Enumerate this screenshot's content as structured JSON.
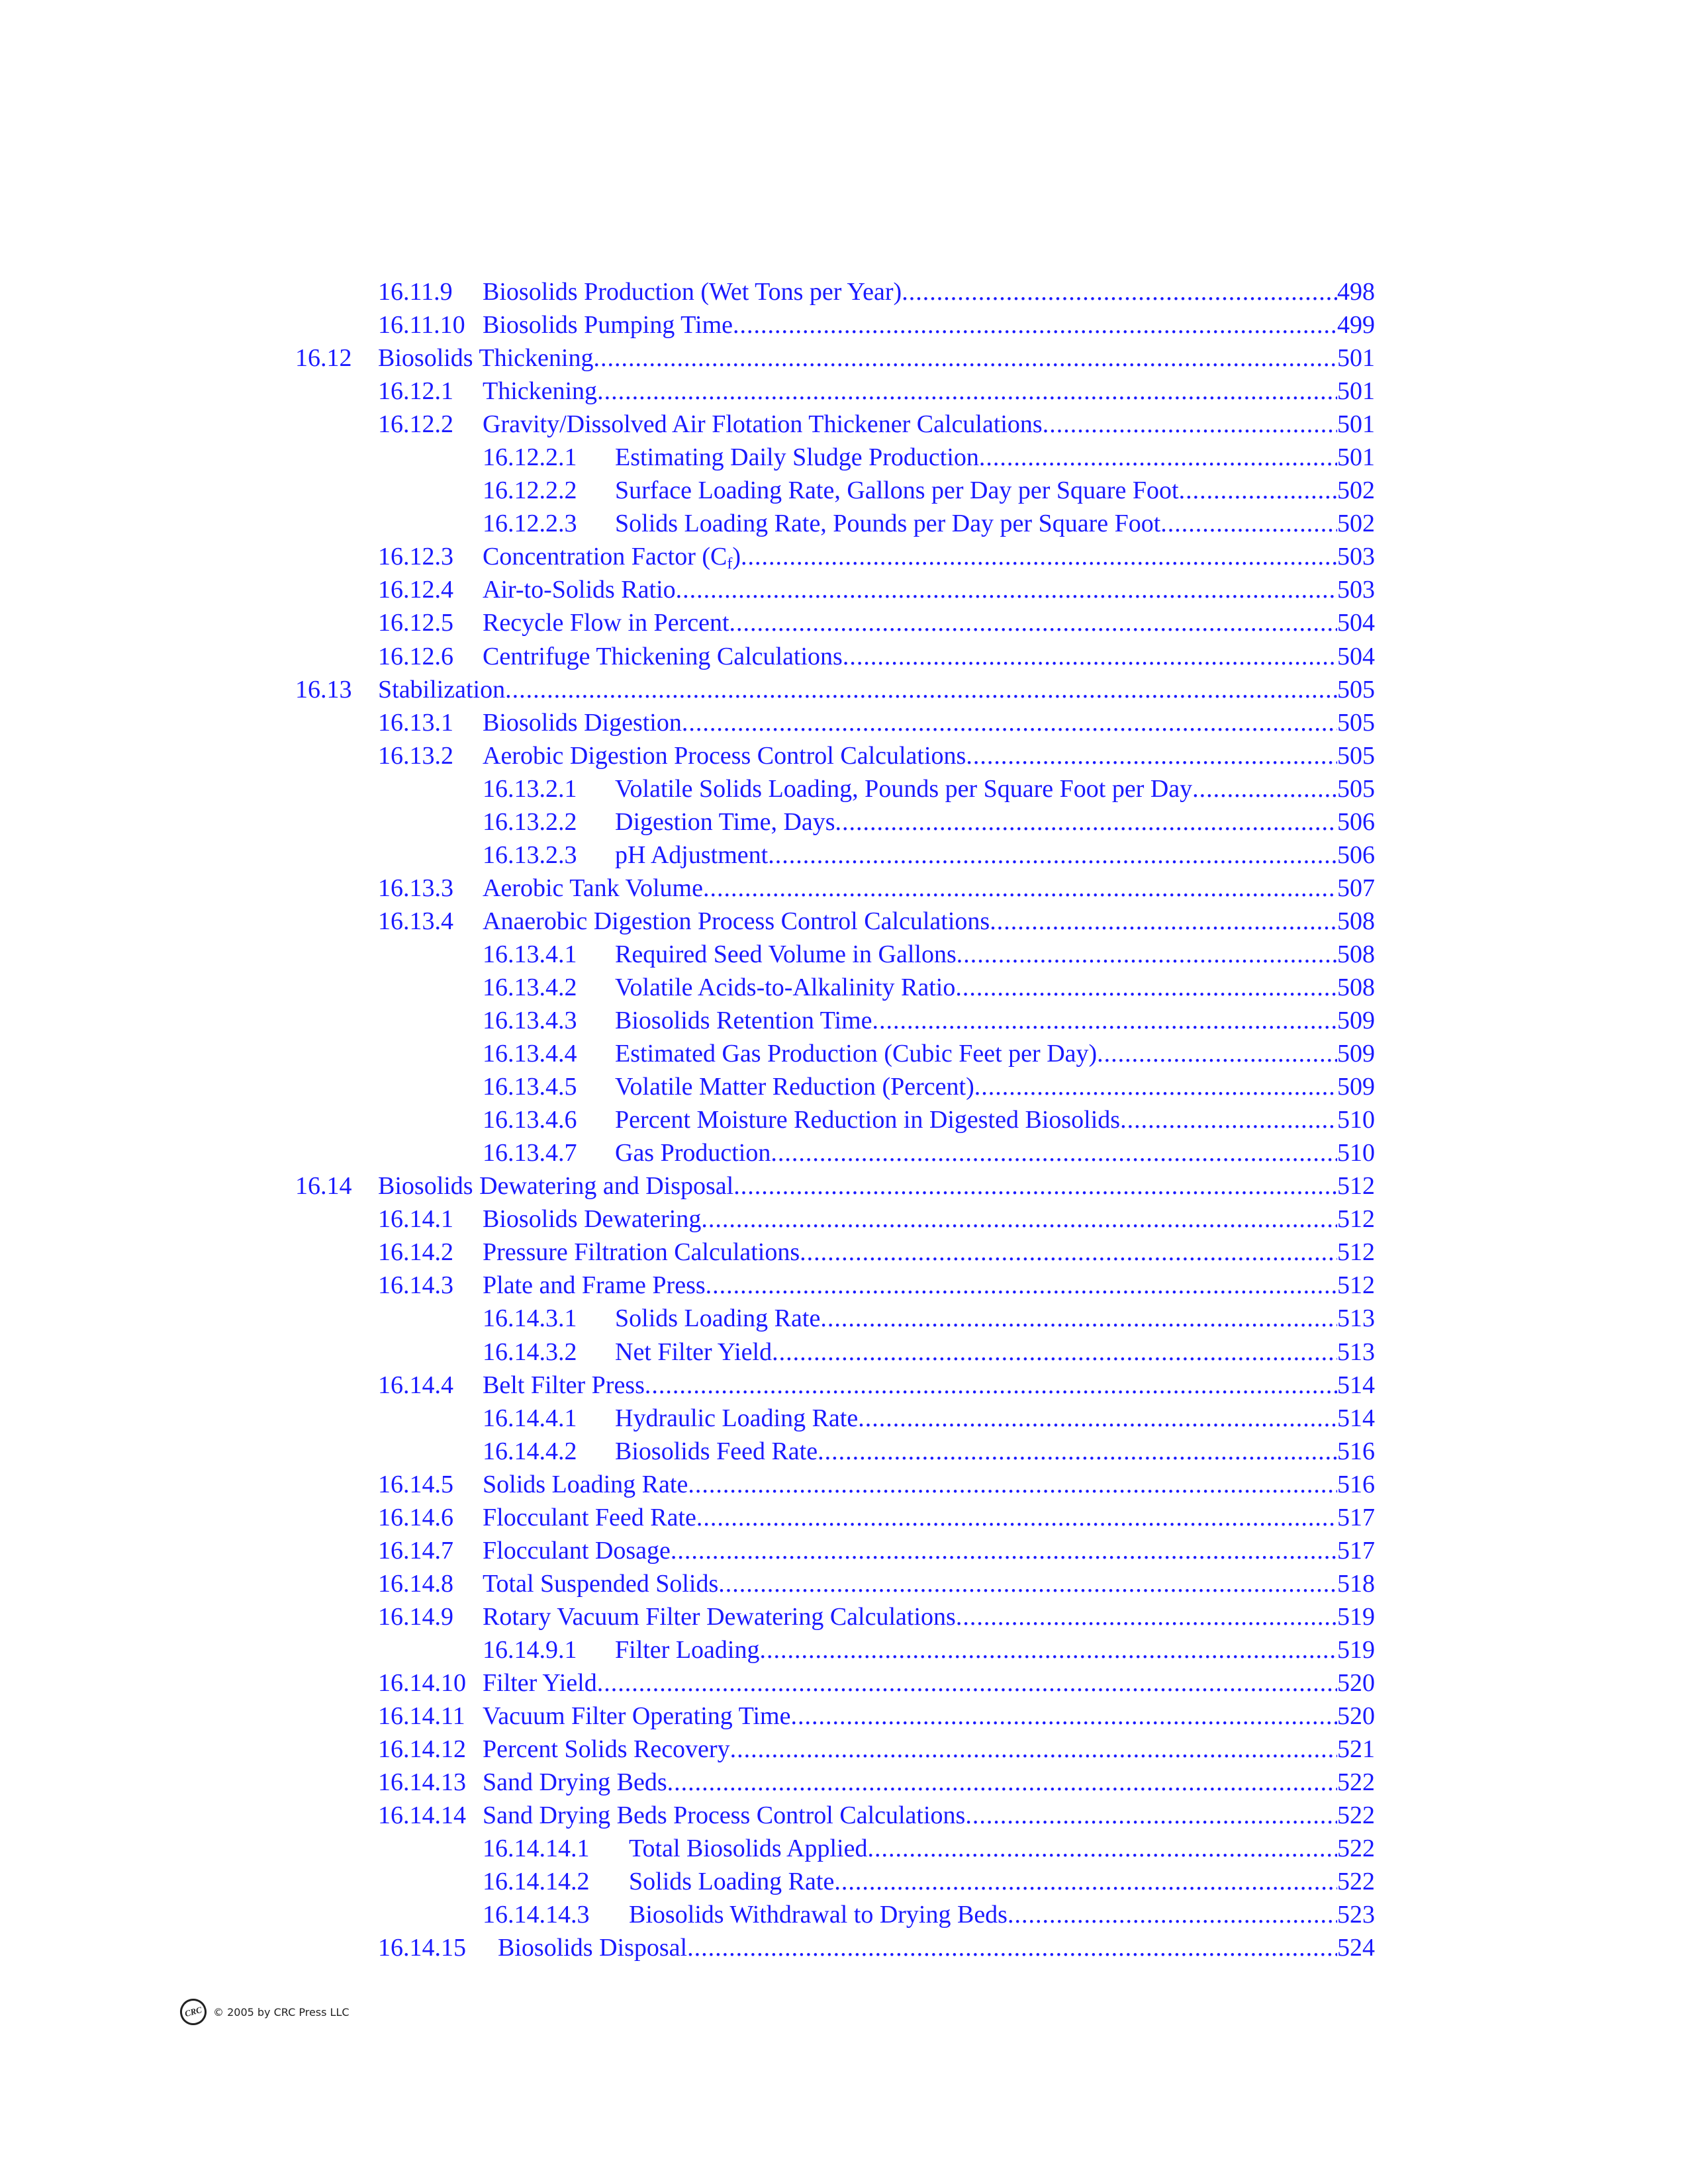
{
  "toc": [
    {
      "level": 2,
      "num": "16.11.9",
      "title": "Biosolids Production (Wet Tons per Year)",
      "page": "498"
    },
    {
      "level": 2,
      "num": "16.11.10",
      "title": "Biosolids Pumping Time",
      "page": "499"
    },
    {
      "level": 1,
      "num": "16.12",
      "title": "Biosolids Thickening",
      "page": "501"
    },
    {
      "level": 2,
      "num": "16.12.1",
      "title": "Thickening",
      "page": "501"
    },
    {
      "level": 2,
      "num": "16.12.2",
      "title": "Gravity/Dissolved Air Flotation Thickener Calculations",
      "page": "501"
    },
    {
      "level": 3,
      "num": "16.12.2.1",
      "title": "Estimating Daily Sludge Production",
      "page": "501"
    },
    {
      "level": 3,
      "num": "16.12.2.2",
      "title": "Surface Loading Rate, Gallons per Day per Square Foot",
      "page": "502"
    },
    {
      "level": 3,
      "num": "16.12.2.3",
      "title": "Solids Loading Rate, Pounds per Day per Square Foot",
      "page": "502"
    },
    {
      "level": 2,
      "num": "16.12.3",
      "title": "Concentration Factor (C",
      "sub": "f",
      "suffix": ")",
      "page": "503"
    },
    {
      "level": 2,
      "num": "16.12.4",
      "title": "Air-to-Solids Ratio",
      "page": "503"
    },
    {
      "level": 2,
      "num": "16.12.5",
      "title": "Recycle Flow in Percent",
      "page": "504"
    },
    {
      "level": 2,
      "num": "16.12.6",
      "title": "Centrifuge Thickening Calculations",
      "page": "504"
    },
    {
      "level": 1,
      "num": "16.13",
      "title": "Stabilization",
      "page": "505"
    },
    {
      "level": 2,
      "num": "16.13.1",
      "title": "Biosolids Digestion",
      "page": "505"
    },
    {
      "level": 2,
      "num": "16.13.2",
      "title": "Aerobic Digestion Process Control Calculations",
      "page": "505"
    },
    {
      "level": 3,
      "num": "16.13.2.1",
      "title": "Volatile Solids Loading, Pounds per Square Foot per Day",
      "page": "505"
    },
    {
      "level": 3,
      "num": "16.13.2.2",
      "title": "Digestion Time, Days",
      "page": "506"
    },
    {
      "level": 3,
      "num": "16.13.2.3",
      "title": "pH Adjustment",
      "page": "506"
    },
    {
      "level": 2,
      "num": "16.13.3",
      "title": "Aerobic Tank Volume",
      "page": "507"
    },
    {
      "level": 2,
      "num": "16.13.4",
      "title": "Anaerobic Digestion Process Control Calculations",
      "page": "508"
    },
    {
      "level": 3,
      "num": "16.13.4.1",
      "title": "Required Seed Volume in Gallons",
      "page": "508"
    },
    {
      "level": 3,
      "num": "16.13.4.2",
      "title": "Volatile Acids-to-Alkalinity Ratio",
      "page": "508"
    },
    {
      "level": 3,
      "num": "16.13.4.3",
      "title": "Biosolids Retention Time",
      "page": "509"
    },
    {
      "level": 3,
      "num": "16.13.4.4",
      "title": "Estimated Gas Production (Cubic Feet per Day)",
      "page": "509"
    },
    {
      "level": 3,
      "num": "16.13.4.5",
      "title": "Volatile Matter Reduction (Percent)",
      "page": "509"
    },
    {
      "level": 3,
      "num": "16.13.4.6",
      "title": "Percent Moisture Reduction in Digested Biosolids",
      "page": "510"
    },
    {
      "level": 3,
      "num": "16.13.4.7",
      "title": "Gas Production",
      "page": "510"
    },
    {
      "level": 1,
      "num": "16.14",
      "title": "Biosolids Dewatering and Disposal",
      "page": "512"
    },
    {
      "level": 2,
      "num": "16.14.1",
      "title": "Biosolids Dewatering",
      "page": "512"
    },
    {
      "level": 2,
      "num": "16.14.2",
      "title": "Pressure Filtration Calculations",
      "page": "512"
    },
    {
      "level": 2,
      "num": "16.14.3",
      "title": "Plate and Frame Press",
      "page": "512"
    },
    {
      "level": 3,
      "num": "16.14.3.1",
      "title": "Solids Loading Rate",
      "page": "513"
    },
    {
      "level": 3,
      "num": "16.14.3.2",
      "title": "Net Filter Yield",
      "page": "513"
    },
    {
      "level": 2,
      "num": "16.14.4",
      "title": "Belt Filter Press",
      "page": "514"
    },
    {
      "level": 3,
      "num": "16.14.4.1",
      "title": "Hydraulic Loading Rate",
      "page": "514"
    },
    {
      "level": 3,
      "num": "16.14.4.2",
      "title": "Biosolids Feed Rate",
      "page": "516"
    },
    {
      "level": 2,
      "num": "16.14.5",
      "title": "Solids Loading Rate",
      "page": "516"
    },
    {
      "level": 2,
      "num": "16.14.6",
      "title": "Flocculant Feed Rate",
      "page": "517"
    },
    {
      "level": 2,
      "num": "16.14.7",
      "title": "Flocculant Dosage",
      "page": "517"
    },
    {
      "level": 2,
      "num": "16.14.8",
      "title": "Total Suspended Solids",
      "page": "518"
    },
    {
      "level": 2,
      "num": "16.14.9",
      "title": "Rotary Vacuum Filter Dewatering Calculations",
      "page": "519"
    },
    {
      "level": 3,
      "num": "16.14.9.1",
      "title": "Filter Loading",
      "page": "519"
    },
    {
      "level": 2,
      "num": "16.14.10",
      "title": "Filter Yield",
      "page": "520"
    },
    {
      "level": 2,
      "num": "16.14.11",
      "title": "Vacuum Filter Operating Time",
      "page": "520"
    },
    {
      "level": 2,
      "num": "16.14.12",
      "title": "Percent Solids Recovery",
      "page": "521"
    },
    {
      "level": 2,
      "num": "16.14.13",
      "title": "Sand Drying Beds",
      "page": "522"
    },
    {
      "level": 2,
      "num": "16.14.14",
      "title": "Sand Drying Beds Process Control Calculations",
      "page": "522"
    },
    {
      "level": 3,
      "num": "16.14.14.1",
      "title": "Total Biosolids Applied",
      "page": "522"
    },
    {
      "level": 3,
      "num": "16.14.14.2",
      "title": "Solids Loading Rate",
      "page": "522"
    },
    {
      "level": 3,
      "num": "16.14.14.3",
      "title": "Biosolids Withdrawal to Drying Beds",
      "page": "523"
    },
    {
      "level": 2,
      "num": "16.14.15",
      "title": "Biosolids Disposal",
      "page": "524"
    }
  ],
  "footer": {
    "logo_text": "CRC",
    "copyright": "© 2005 by CRC Press LLC"
  }
}
